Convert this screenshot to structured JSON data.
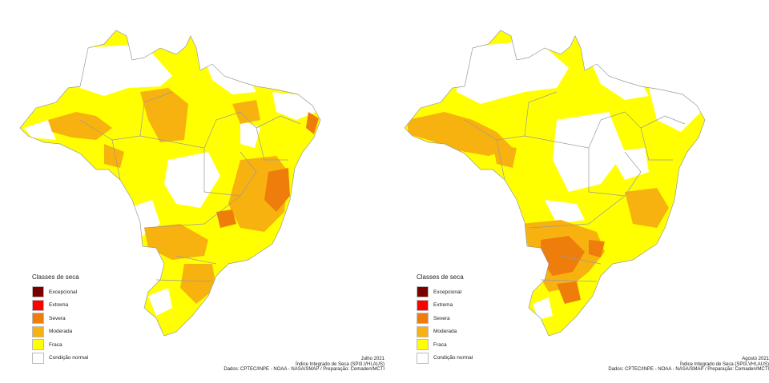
{
  "colors": {
    "excepcional": "#7a0000",
    "extrema": "#ff0000",
    "severa": "#ef7d0c",
    "moderada": "#f8b20f",
    "fraca": "#ffff00",
    "normal": "#ffffff",
    "border": "#9a9a9a"
  },
  "legend": {
    "title": "Classes de seca",
    "items": [
      {
        "label": "Excepcional",
        "color": "#7a0000"
      },
      {
        "label": "Extrema",
        "color": "#ff0000"
      },
      {
        "label": "Severa",
        "color": "#ef7d0c"
      },
      {
        "label": "Moderada",
        "color": "#f8b20f"
      },
      {
        "label": "Fraca",
        "color": "#ffff00"
      },
      {
        "label": "Condição normal",
        "color": "#ffffff"
      }
    ]
  },
  "panels": [
    {
      "month": "Julho 2021",
      "index": "Índice Integrado de Seca (SPI3,VHI,AUS)",
      "source": "Dados: CPTEC/INPE - NOAA - NASA/SMAP / Preparação: Cemaden/MCTI"
    },
    {
      "month": "Agosto 2021",
      "index": "Índice Integrado de Seca (SPI3,VHI,AUS)",
      "source": "Dados: CPTEC/INPE - NOAA - NASA/SMAP / Preparação: Cemaden/MCTI"
    }
  ]
}
